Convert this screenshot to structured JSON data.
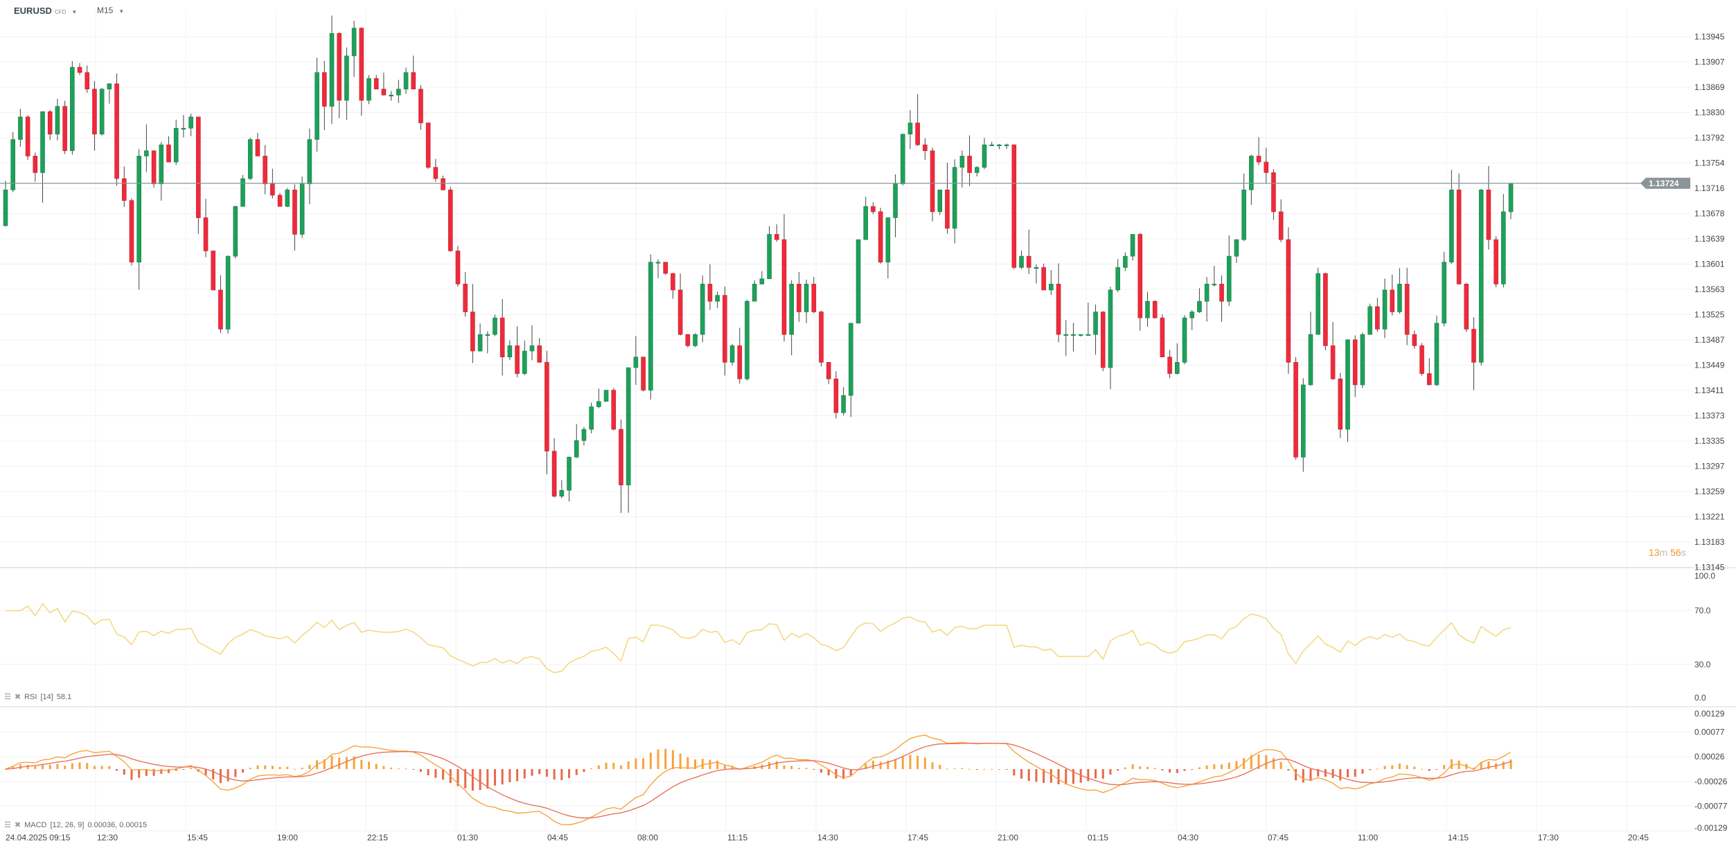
{
  "header": {
    "symbol": "EURUSD",
    "instrument_type": "CFD",
    "timeframe": "M15"
  },
  "countdown": {
    "minutes": "13",
    "minutes_unit": "m",
    "seconds": "56",
    "seconds_unit": "s"
  },
  "colors": {
    "up": "#1fa05a",
    "down": "#ee2b3b",
    "rsi": "#f3d77a",
    "macd_line": "#f7a33c",
    "signal_line": "#e8735a",
    "hist_pos": "#f7a33c",
    "hist_neg": "#e8684a",
    "grid": "#f0f0f0",
    "price_tag": "#8a9499"
  },
  "indicators": {
    "rsi": {
      "label": "RSI",
      "params": "[14]",
      "value": "58.1",
      "period": 14
    },
    "macd": {
      "label": "MACD",
      "params": "[12,  26,  9]",
      "value": "0.00036,  0.00015",
      "fast": 12,
      "slow": 26,
      "signal": 9
    }
  },
  "chart_data": {
    "type": "candlestick",
    "symbol": "EURUSD",
    "timeframe": "M15",
    "current_price": 1.13724,
    "current_price_label": "1.13724",
    "price_ticks": [
      "1.13945",
      "1.13907",
      "1.13869",
      "1.13830",
      "1.13792",
      "1.13754",
      "1.13716",
      "1.13678",
      "1.13639",
      "1.13601",
      "1.13563",
      "1.13525",
      "1.13487",
      "1.13449",
      "1.13411",
      "1.13373",
      "1.13335",
      "1.13297",
      "1.13259",
      "1.13221",
      "1.13183",
      "1.13145"
    ],
    "price_range": [
      1.13145,
      1.13945
    ],
    "rsi_ticks": [
      "100.0",
      "70.0",
      "30.0",
      "0.0"
    ],
    "macd_ticks": [
      "0.00129",
      "0.00077",
      "0.00026",
      "-0.00026",
      "-0.00077",
      "-0.00129"
    ],
    "macd_range": [
      -0.00129,
      0.00129
    ],
    "time_ticks": [
      "24.04.2025  09:15",
      "12:30",
      "15:45",
      "19:00",
      "22:15",
      "01:30",
      "04:45",
      "08:00",
      "11:15",
      "14:30",
      "17:45",
      "21:00",
      "01:15",
      "04:30",
      "07:45",
      "11:00",
      "14:15",
      "17:30",
      "20:45"
    ],
    "first_open": 1.1366,
    "closes": [
      1.13714,
      1.1379,
      1.13824,
      1.13765,
      1.1374,
      1.13832,
      1.13798,
      1.1384,
      1.13773,
      1.13899,
      1.13891,
      1.13866,
      1.13798,
      1.13866,
      1.13874,
      1.13731,
      1.13698,
      1.13605,
      1.13765,
      1.13773,
      1.13723,
      1.13782,
      1.13756,
      1.13807,
      1.13807,
      1.13824,
      1.13672,
      1.13622,
      1.13563,
      1.13504,
      1.13614,
      1.13689,
      1.13731,
      1.1379,
      1.13765,
      1.13723,
      1.13706,
      1.13689,
      1.13714,
      1.13647,
      1.13723,
      1.1379,
      1.13891,
      1.1384,
      1.1395,
      1.13849,
      1.13916,
      1.13958,
      1.13849,
      1.13882,
      1.13866,
      1.13857,
      1.13857,
      1.13866,
      1.13891,
      1.13866,
      1.13815,
      1.13748,
      1.13731,
      1.13714,
      1.13622,
      1.13572,
      1.1353,
      1.13471,
      1.13496,
      1.13496,
      1.13521,
      1.13462,
      1.13479,
      1.13437,
      1.13471,
      1.13479,
      1.13454,
      1.1332,
      1.13252,
      1.13261,
      1.13311,
      1.13336,
      1.13353,
      1.13387,
      1.13395,
      1.13412,
      1.13353,
      1.13269,
      1.13446,
      1.13462,
      1.13412,
      1.13605,
      1.13605,
      1.13588,
      1.13563,
      1.13496,
      1.13479,
      1.13496,
      1.13572,
      1.13546,
      1.13555,
      1.13454,
      1.13479,
      1.13429,
      1.13546,
      1.13572,
      1.1358,
      1.13647,
      1.13639,
      1.13496,
      1.13572,
      1.1353,
      1.13572,
      1.1353,
      1.13454,
      1.13429,
      1.13378,
      1.13404,
      1.13513,
      1.13639,
      1.13689,
      1.13681,
      1.13605,
      1.13672,
      1.13723,
      1.13798,
      1.13815,
      1.13782,
      1.13773,
      1.13681,
      1.13714,
      1.13656,
      1.13748,
      1.13765,
      1.1374,
      1.13748,
      1.13782,
      1.13782,
      1.13782,
      1.13782,
      1.13597,
      1.13614,
      1.13597,
      1.13597,
      1.13563,
      1.13572,
      1.13496,
      1.13496,
      1.13496,
      1.13496,
      1.13496,
      1.1353,
      1.13446,
      1.13563,
      1.13597,
      1.13614,
      1.13647,
      1.13521,
      1.13546,
      1.13521,
      1.13462,
      1.13437,
      1.13454,
      1.13521,
      1.1353,
      1.13546,
      1.13572,
      1.13572,
      1.13546,
      1.13614,
      1.13639,
      1.13714,
      1.13765,
      1.13756,
      1.1374,
      1.13681,
      1.13639,
      1.13454,
      1.13311,
      1.1342,
      1.13496,
      1.13588,
      1.13479,
      1.13429,
      1.13353,
      1.13488,
      1.1342,
      1.13496,
      1.13538,
      1.13504,
      1.13563,
      1.1353,
      1.13572,
      1.13496,
      1.13479,
      1.13437,
      1.1342,
      1.13513,
      1.13605,
      1.13714,
      1.13572,
      1.13504,
      1.13454,
      1.13714,
      1.13639,
      1.13572,
      1.13681,
      1.13724
    ]
  }
}
